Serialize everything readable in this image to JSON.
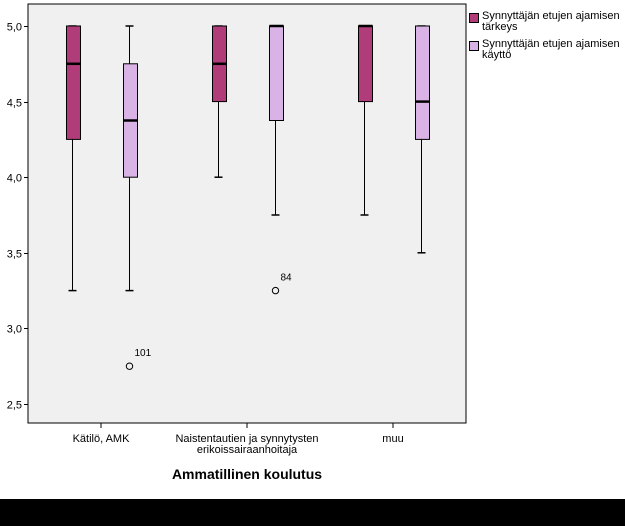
{
  "chart_data": {
    "type": "boxplot",
    "xlabel": "Ammatillinen koulutus",
    "ylabel": "",
    "ylim": [
      2.35,
      5.15
    ],
    "yticks": [
      "5,0",
      "4,5",
      "4,0",
      "3,5",
      "3,0",
      "2,5"
    ],
    "ytick_values": [
      5.0,
      4.5,
      4.0,
      3.5,
      3.0,
      2.5
    ],
    "categories": [
      {
        "lines": [
          "Kätilö, AMK"
        ]
      },
      {
        "lines": [
          "Naistentautien ja synnytysten",
          "erikoissairaanhoitaja"
        ]
      },
      {
        "lines": [
          "muu"
        ]
      }
    ],
    "legend_position": "right",
    "series": [
      {
        "name": [
          "Synnyttäjän etujen ajamisen",
          "tärkeys"
        ],
        "color": "#b03c7a",
        "boxes": [
          {
            "min": 3.25,
            "q1": 4.25,
            "median": 4.75,
            "q3": 5.0,
            "max": 5.0,
            "outliers": []
          },
          {
            "min": 4.0,
            "q1": 4.5,
            "median": 4.75,
            "q3": 5.0,
            "max": 5.0,
            "outliers": []
          },
          {
            "min": 3.75,
            "q1": 4.5,
            "median": 5.0,
            "q3": 5.0,
            "max": 5.0,
            "outliers": []
          }
        ]
      },
      {
        "name": [
          "Synnyttäjän etujen ajamisen",
          "käyttö"
        ],
        "color": "#d9b3e6",
        "boxes": [
          {
            "min": 3.25,
            "q1": 4.0,
            "median": 4.375,
            "q3": 4.75,
            "max": 5.0,
            "outliers": [
              {
                "value": 2.75,
                "label": "101"
              }
            ]
          },
          {
            "min": 3.75,
            "q1": 4.375,
            "median": 5.0,
            "q3": 5.0,
            "max": 5.0,
            "outliers": [
              {
                "value": 3.25,
                "label": "84"
              }
            ]
          },
          {
            "min": 3.5,
            "q1": 4.25,
            "median": 4.5,
            "q3": 5.0,
            "max": 5.0,
            "outliers": []
          }
        ]
      }
    ]
  }
}
